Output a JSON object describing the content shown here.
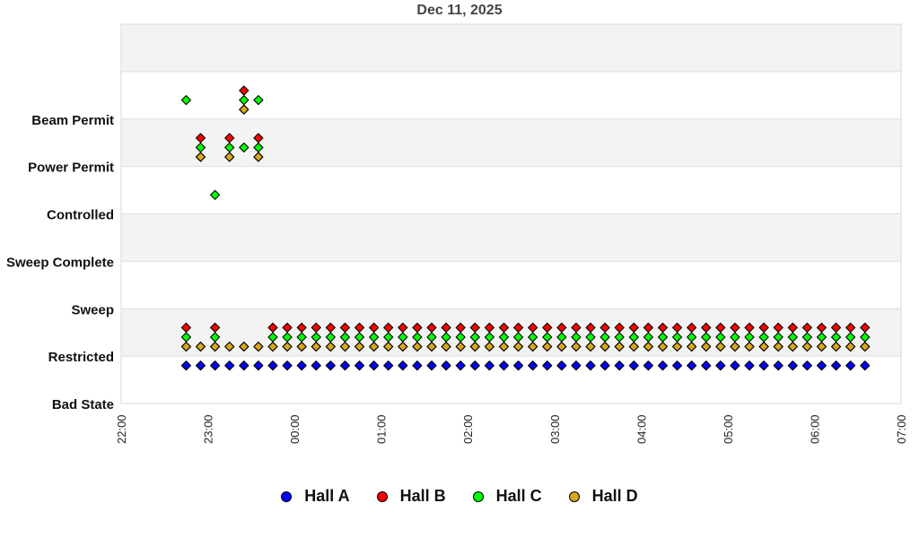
{
  "title": "Dec 11, 2025",
  "chart_data": {
    "type": "scatter",
    "title": "Dec 11, 2025",
    "xlabel": "",
    "ylabel": "",
    "x_ticks": [
      "22:00",
      "23:00",
      "00:00",
      "01:00",
      "02:00",
      "03:00",
      "04:00",
      "05:00",
      "06:00",
      "07:00"
    ],
    "x_range": [
      "22:00",
      "07:00"
    ],
    "y_categories": [
      "Bad State",
      "Restricted",
      "Sweep",
      "Sweep Complete",
      "Controlled",
      "Power Permit",
      "Beam Permit"
    ],
    "grid": "alternating horizontal bands",
    "legend_position": "bottom",
    "sample_interval_minutes": 10,
    "times": [
      "22:45",
      "22:55",
      "23:05",
      "23:15",
      "23:25",
      "23:35",
      "23:45",
      "23:55",
      "00:05",
      "00:15",
      "00:25",
      "00:35",
      "00:45",
      "00:55",
      "01:05",
      "01:15",
      "01:25",
      "01:35",
      "01:45",
      "01:55",
      "02:05",
      "02:15",
      "02:25",
      "02:35",
      "02:45",
      "02:55",
      "03:05",
      "03:15",
      "03:25",
      "03:35",
      "03:45",
      "03:55",
      "04:05",
      "04:15",
      "04:25",
      "04:35",
      "04:45",
      "04:55",
      "05:05",
      "05:15",
      "05:25",
      "05:35",
      "05:45",
      "05:55",
      "06:05",
      "06:15",
      "06:25",
      "06:35"
    ],
    "series": [
      {
        "name": "Hall A",
        "color": "#0000ff",
        "offset": -0.2,
        "points": [
          {
            "state": "Restricted",
            "time_indices": "0-47"
          }
        ]
      },
      {
        "name": "Hall B",
        "color": "#ff0000",
        "offset": 0.6,
        "points": [
          {
            "state": "Restricted",
            "time_indices": [
              0,
              2,
              "6-47"
            ]
          },
          {
            "state": "Power Permit",
            "time_indices": [
              1,
              3,
              5
            ]
          },
          {
            "state": "Beam Permit",
            "time_indices": [
              4
            ]
          }
        ]
      },
      {
        "name": "Hall C",
        "color": "#00ff00",
        "offset": 0.4,
        "points": [
          {
            "state": "Restricted",
            "time_indices": [
              0,
              2,
              "6-47"
            ]
          },
          {
            "state": "Beam Permit",
            "time_indices": [
              0,
              4,
              5
            ]
          },
          {
            "state": "Power Permit",
            "time_indices": [
              1,
              3,
              4,
              5
            ]
          },
          {
            "state": "Controlled",
            "time_indices": [
              2
            ]
          }
        ]
      },
      {
        "name": "Hall D",
        "color": "#daa520",
        "offset": 0.2,
        "points": [
          {
            "state": "Restricted",
            "time_indices": "0-47"
          },
          {
            "state": "Power Permit",
            "time_indices": [
              1,
              3,
              5
            ]
          },
          {
            "state": "Beam Permit",
            "time_indices": [
              4
            ]
          }
        ]
      }
    ]
  },
  "legend": [
    {
      "label": "Hall A",
      "color": "#0000ff"
    },
    {
      "label": "Hall B",
      "color": "#ff0000"
    },
    {
      "label": "Hall C",
      "color": "#00ff00"
    },
    {
      "label": "Hall D",
      "color": "#daa520"
    }
  ]
}
